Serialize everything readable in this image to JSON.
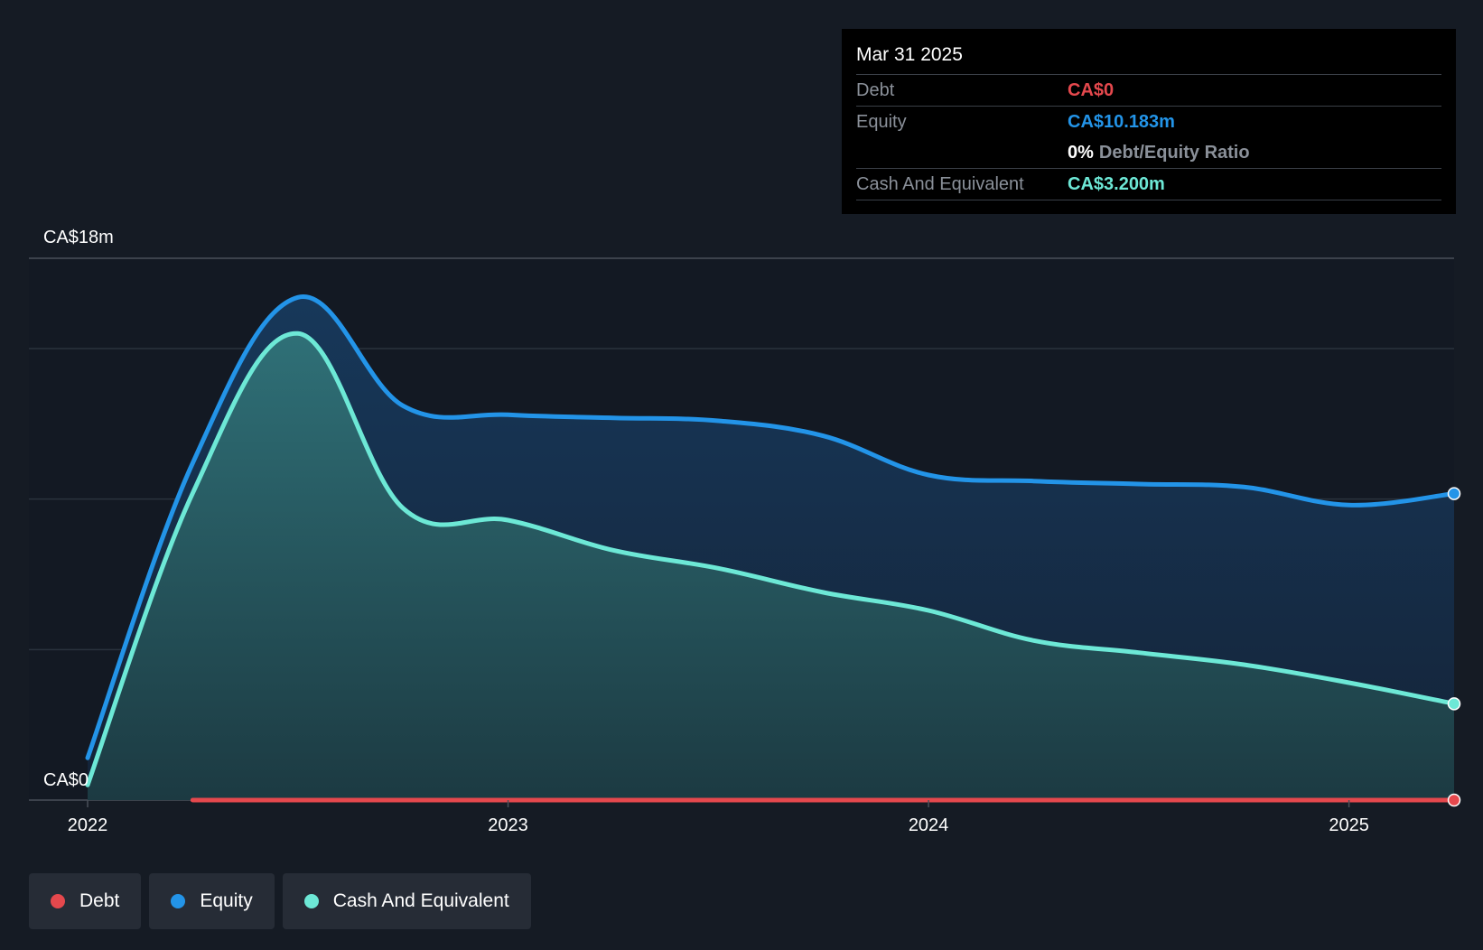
{
  "chart_data": {
    "type": "area",
    "y_top_label": "CA$18m",
    "y_bottom_label": "CA$0",
    "ylim": [
      0,
      18
    ],
    "x_ticks": [
      "2022",
      "2023",
      "2024",
      "2025"
    ],
    "x_tick_values": [
      2022.0,
      2023.0,
      2024.0,
      2025.0
    ],
    "xlim": [
      2021.86,
      2025.25
    ],
    "grid": true,
    "legend_position": "bottom-left",
    "series": [
      {
        "name": "Equity",
        "color": "#2394e8",
        "x": [
          2022.0,
          2022.25,
          2022.5,
          2022.75,
          2023.0,
          2023.25,
          2023.5,
          2023.75,
          2024.0,
          2024.25,
          2024.5,
          2024.75,
          2025.0,
          2025.25
        ],
        "values": [
          1.4,
          11.2,
          16.7,
          13.1,
          12.8,
          12.7,
          12.6,
          12.1,
          10.8,
          10.6,
          10.5,
          10.4,
          9.8,
          10.183
        ]
      },
      {
        "name": "Cash And Equivalent",
        "color": "#6de8d6",
        "x": [
          2022.0,
          2022.25,
          2022.5,
          2022.75,
          2023.0,
          2023.25,
          2023.5,
          2023.75,
          2024.0,
          2024.25,
          2024.5,
          2024.75,
          2025.0,
          2025.25
        ],
        "values": [
          0.5,
          10.2,
          15.5,
          9.7,
          9.3,
          8.3,
          7.7,
          6.9,
          6.3,
          5.3,
          4.9,
          4.5,
          3.9,
          3.2
        ]
      },
      {
        "name": "Debt",
        "color": "#e5484d",
        "x": [
          2022.25,
          2025.25
        ],
        "values": [
          0,
          0
        ]
      }
    ]
  },
  "tooltip": {
    "date": "Mar 31 2025",
    "debt_label": "Debt",
    "debt_value": "CA$0",
    "equity_label": "Equity",
    "equity_value": "CA$10.183m",
    "ratio_value": "0%",
    "ratio_label": "Debt/Equity Ratio",
    "cash_label": "Cash And Equivalent",
    "cash_value": "CA$3.200m"
  },
  "legend": {
    "debt": "Debt",
    "equity": "Equity",
    "cash": "Cash And Equivalent"
  },
  "colors": {
    "debt": "#e5484d",
    "equity": "#2394e8",
    "cash": "#6de8d6"
  }
}
